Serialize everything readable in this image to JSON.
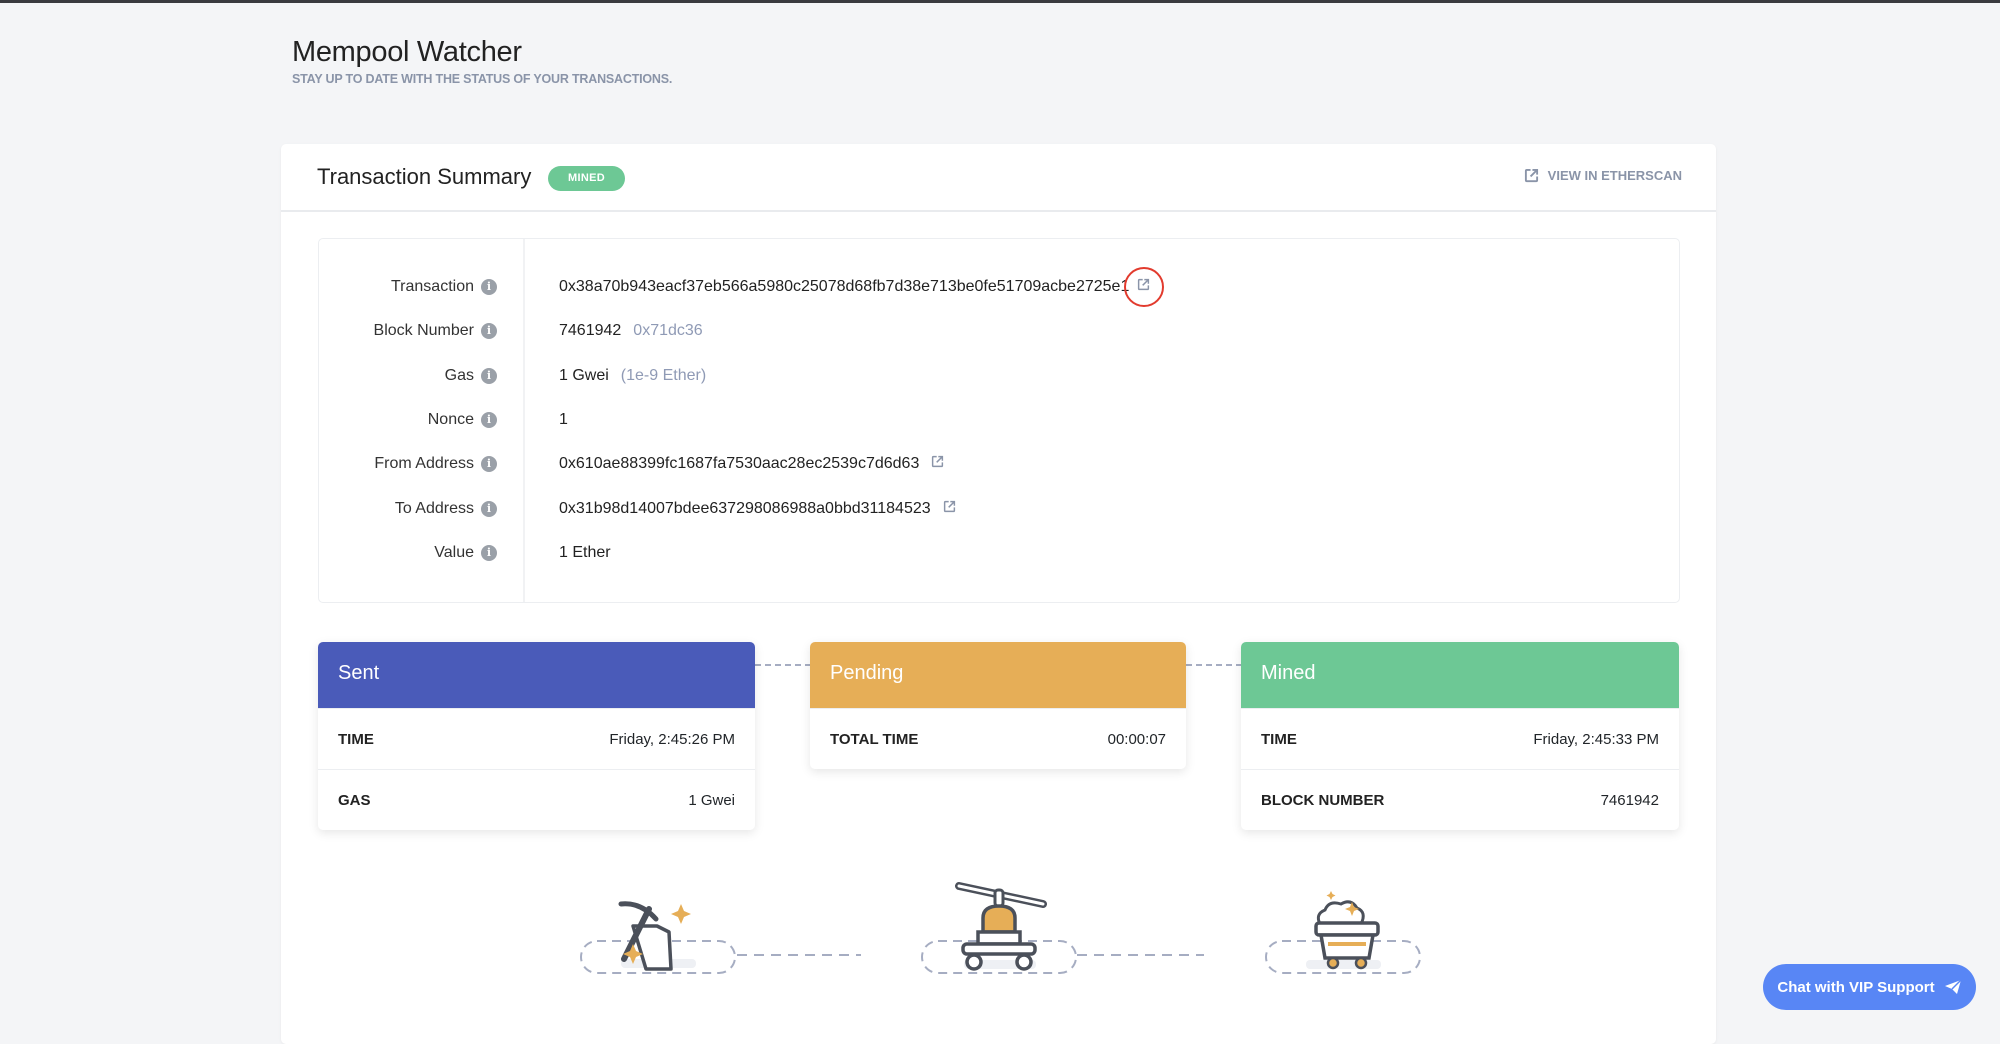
{
  "header": {
    "title": "Mempool Watcher",
    "subtitle": "STAY UP TO DATE WITH THE STATUS OF YOUR TRANSACTIONS."
  },
  "summary": {
    "title": "Transaction Summary",
    "status_badge": "MINED",
    "etherscan_link": "VIEW IN ETHERSCAN",
    "rows": [
      {
        "label": "Transaction",
        "value": "0x38a70b943eacf37eb566a5980c25078d68fb7d38e713be0fe51709acbe2725e1",
        "link_icon": "external-link-icon"
      },
      {
        "label": "Block Number",
        "value": "7461942",
        "secondary": "0x71dc36"
      },
      {
        "label": "Gas",
        "value": "1 Gwei",
        "secondary": "(1e-9 Ether)"
      },
      {
        "label": "Nonce",
        "value": "1"
      },
      {
        "label": "From Address",
        "value": "0x610ae88399fc1687fa7530aac28ec2539c7d6d63",
        "link_icon": "external-link-icon"
      },
      {
        "label": "To Address",
        "value": "0x31b98d14007bdee637298086988a0bbd31184523",
        "link_icon": "external-link-icon"
      },
      {
        "label": "Value",
        "value": "1 Ether"
      }
    ]
  },
  "stages": [
    {
      "title": "Sent",
      "color": "#4a5bb9",
      "rows": [
        {
          "label": "TIME",
          "value": "Friday, 2:45:26 PM"
        },
        {
          "label": "GAS",
          "value": "1 Gwei"
        }
      ]
    },
    {
      "title": "Pending",
      "color": "#e6ae57",
      "rows": [
        {
          "label": "TOTAL TIME",
          "value": "00:00:07"
        }
      ]
    },
    {
      "title": "Mined",
      "color": "#6dc895",
      "rows": [
        {
          "label": "TIME",
          "value": "Friday, 2:45:33 PM"
        },
        {
          "label": "BLOCK NUMBER",
          "value": "7461942"
        }
      ]
    }
  ],
  "chat_button": "Chat with VIP Support",
  "colors": {
    "accent": "#5886f5",
    "highlight_ring": "#e23b2e",
    "muted": "#8a94a8"
  }
}
